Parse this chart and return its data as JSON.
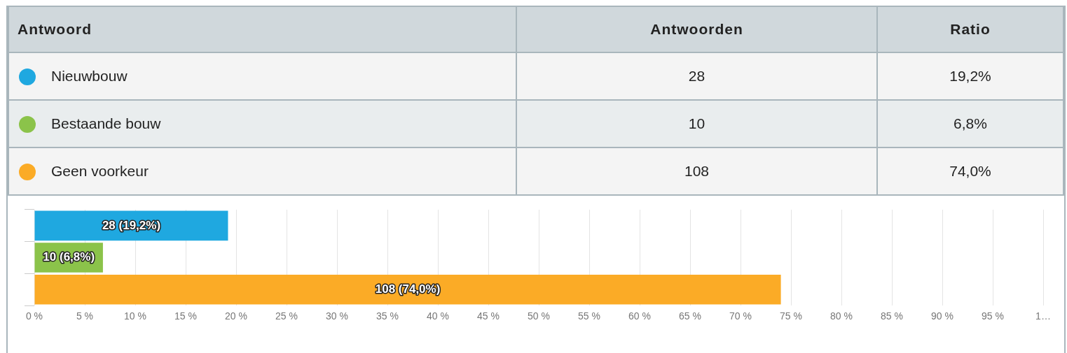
{
  "chart_data": {
    "type": "bar",
    "orientation": "horizontal",
    "categories": [
      null,
      null,
      null
    ],
    "values": [
      19.2,
      6.8,
      74.0
    ],
    "colors": [
      "#1fa8e0",
      "#8bc34a",
      "#fbab26"
    ],
    "value_labels": [
      "28 (19,2%)",
      "10 (6,8%)",
      "108 (74,0%)"
    ],
    "annotations": [
      "Antwoord",
      "Antwoorden",
      "Ratio",
      "Nieuwbouw",
      "28",
      "19,2%",
      "Bestaande bouw",
      "10",
      "6,8%",
      "Geen voorkeur",
      "108",
      "74,0%"
    ],
    "xlim": [
      0,
      100
    ],
    "xticks": [
      {
        "value": 0,
        "label": "0 %"
      },
      {
        "value": 5,
        "label": "5 %"
      },
      {
        "value": 10,
        "label": "10 %"
      },
      {
        "value": 15,
        "label": "15 %"
      },
      {
        "value": 20,
        "label": "20 %"
      },
      {
        "value": 25,
        "label": "25 %"
      },
      {
        "value": 30,
        "label": "30 %"
      },
      {
        "value": 35,
        "label": "35 %"
      },
      {
        "value": 40,
        "label": "40 %"
      },
      {
        "value": 45,
        "label": "45 %"
      },
      {
        "value": 50,
        "label": "50 %"
      },
      {
        "value": 55,
        "label": "55 %"
      },
      {
        "value": 60,
        "label": "60 %"
      },
      {
        "value": 65,
        "label": "65 %"
      },
      {
        "value": 70,
        "label": "70 %"
      },
      {
        "value": 75,
        "label": "75 %"
      },
      {
        "value": 80,
        "label": "80 %"
      },
      {
        "value": 85,
        "label": "85 %"
      },
      {
        "value": 90,
        "label": "90 %"
      },
      {
        "value": 95,
        "label": "95 %"
      },
      {
        "value": 100,
        "label": "1…"
      }
    ],
    "grid": "x",
    "tick_labels": "x"
  }
}
